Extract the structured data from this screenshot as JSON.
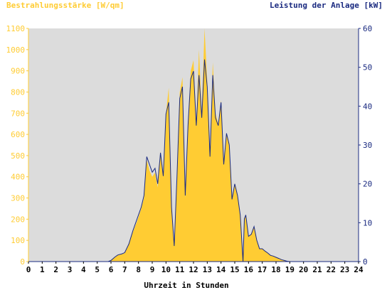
{
  "chart_data": {
    "type": "area",
    "left_axis_title": "Bestrahlungsstärke [W/qm]",
    "right_axis_title": "Leistung der Anlage [kW]",
    "xlabel": "Uhrzeit in Stunden",
    "xlim": [
      0,
      24
    ],
    "ylim_left": [
      0,
      1100
    ],
    "ylim_right": [
      0,
      60
    ],
    "x_ticks": [
      "0",
      "1",
      "2",
      "3",
      "4",
      "5",
      "6",
      "7",
      "8",
      "9",
      "10",
      "11",
      "12",
      "13",
      "14",
      "15",
      "16",
      "17",
      "18",
      "19",
      "20",
      "21",
      "22",
      "23",
      "24"
    ],
    "y_left_ticks": [
      "0",
      "100",
      "200",
      "300",
      "400",
      "500",
      "600",
      "700",
      "800",
      "900",
      "1000",
      "1100"
    ],
    "y_right_ticks": [
      "0",
      "10",
      "20",
      "30",
      "40",
      "50",
      "60"
    ],
    "grid": false,
    "colors": {
      "irradiance": "#ffcc33",
      "power": "#1a2a80",
      "plot_background": "#dcdcdc",
      "left_axis_text": "#ffcc33",
      "right_axis_text": "#1a2a80"
    },
    "series": [
      {
        "name": "Bestrahlungsstärke [W/qm]",
        "axis": "left",
        "style": "area",
        "x": [
          0,
          5.8,
          6.0,
          6.3,
          6.5,
          6.8,
          7.0,
          7.3,
          7.6,
          7.9,
          8.2,
          8.4,
          8.6,
          8.8,
          9.0,
          9.2,
          9.4,
          9.6,
          9.8,
          10.0,
          10.2,
          10.4,
          10.6,
          10.8,
          11.0,
          11.2,
          11.4,
          11.6,
          11.8,
          12.0,
          12.2,
          12.4,
          12.6,
          12.8,
          13.0,
          13.2,
          13.4,
          13.6,
          13.8,
          14.0,
          14.2,
          14.4,
          14.6,
          14.8,
          15.0,
          15.2,
          15.4,
          15.6,
          15.7,
          15.8,
          16.0,
          16.2,
          16.4,
          16.6,
          16.8,
          17.0,
          17.2,
          17.4,
          17.6,
          17.8,
          18.0,
          18.2,
          18.4,
          18.6,
          18.8,
          19.0,
          24
        ],
        "values": [
          0,
          0,
          5,
          20,
          30,
          35,
          40,
          80,
          140,
          190,
          250,
          300,
          480,
          430,
          400,
          420,
          350,
          520,
          400,
          700,
          820,
          250,
          70,
          400,
          800,
          870,
          300,
          650,
          900,
          950,
          650,
          1000,
          700,
          1100,
          850,
          500,
          940,
          700,
          650,
          760,
          470,
          600,
          560,
          300,
          370,
          320,
          220,
          20,
          200,
          220,
          120,
          130,
          160,
          100,
          60,
          60,
          50,
          40,
          30,
          25,
          20,
          15,
          10,
          5,
          2,
          0,
          0
        ]
      },
      {
        "name": "Leistung der Anlage [kW]",
        "axis": "right",
        "style": "line",
        "x": [
          0,
          5.8,
          6.0,
          6.3,
          6.5,
          6.8,
          7.0,
          7.3,
          7.6,
          7.9,
          8.2,
          8.4,
          8.6,
          8.8,
          9.0,
          9.2,
          9.4,
          9.6,
          9.8,
          10.0,
          10.2,
          10.4,
          10.6,
          10.8,
          11.0,
          11.2,
          11.4,
          11.6,
          11.8,
          12.0,
          12.2,
          12.4,
          12.6,
          12.8,
          13.0,
          13.2,
          13.4,
          13.6,
          13.8,
          14.0,
          14.2,
          14.4,
          14.6,
          14.8,
          15.0,
          15.2,
          15.4,
          15.6,
          15.7,
          15.8,
          16.0,
          16.2,
          16.4,
          16.6,
          16.8,
          17.0,
          17.2,
          17.4,
          17.6,
          17.8,
          18.0,
          18.2,
          18.4,
          18.6,
          18.8,
          19.0,
          24
        ],
        "values": [
          0,
          0,
          0.3,
          1.2,
          1.7,
          2,
          2.3,
          4.5,
          8,
          11,
          14,
          17,
          27,
          25,
          23,
          24,
          20,
          28,
          22,
          38,
          41,
          14,
          4,
          22,
          42,
          45,
          17,
          35,
          47,
          49,
          35,
          48,
          37,
          52,
          45,
          27,
          48,
          37,
          35,
          41,
          25,
          33,
          30,
          16,
          20,
          17,
          12,
          0,
          11,
          12,
          6.5,
          7,
          9,
          5.5,
          3.3,
          3.3,
          2.7,
          2.2,
          1.6,
          1.4,
          1.1,
          0.8,
          0.5,
          0.3,
          0.1,
          0,
          0
        ]
      }
    ]
  }
}
